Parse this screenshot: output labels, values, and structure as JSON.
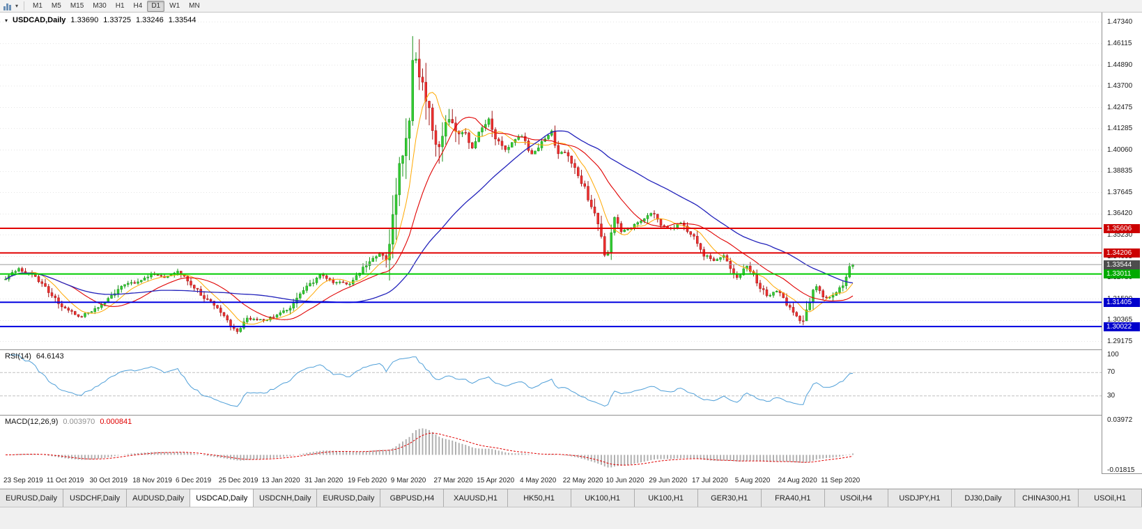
{
  "toolbar": {
    "timeframes": [
      "M1",
      "M5",
      "M15",
      "M30",
      "H1",
      "H4",
      "D1",
      "W1",
      "MN"
    ],
    "active_timeframe": "D1"
  },
  "chart": {
    "title": "USDCAD,Daily",
    "open": "1.33690",
    "high": "1.33725",
    "low": "1.33246",
    "close": "1.33544",
    "price_ticks": [
      "1.47340",
      "1.46115",
      "1.44890",
      "1.43700",
      "1.42475",
      "1.41285",
      "1.40060",
      "1.38835",
      "1.37645",
      "1.36420",
      "1.35230",
      "1.34005",
      "1.32780",
      "1.31590",
      "1.30365",
      "1.29175"
    ],
    "levels": [
      {
        "name": "resistance-upper",
        "price": 1.35606,
        "tag": "1.35606",
        "line_color": "#e00000",
        "tag_bg": "#cc0000",
        "width": 2
      },
      {
        "name": "resistance-lower",
        "price": 1.34206,
        "tag": "1.34206",
        "line_color": "#e00000",
        "tag_bg": "#cc0000",
        "width": 2
      },
      {
        "name": "bid-line",
        "price": 1.33544,
        "tag": "1.33544",
        "line_color": "#9a9a9a",
        "tag_bg": "#4d4d4d",
        "width": 1
      },
      {
        "name": "support-green",
        "price": 1.33011,
        "tag": "1.33011",
        "line_color": "#00cc00",
        "tag_bg": "#00aa00",
        "width": 2
      },
      {
        "name": "support-blue-upper",
        "price": 1.31405,
        "tag": "1.31405",
        "line_color": "#0000e0",
        "tag_bg": "#0000cc",
        "width": 2
      },
      {
        "name": "support-blue-lower",
        "price": 1.30022,
        "tag": "1.30022",
        "line_color": "#0000e0",
        "tag_bg": "#0000cc",
        "width": 2
      }
    ],
    "ma_colors": {
      "fast": "#ffa800",
      "medium": "#e00000",
      "slow": "#2222bb"
    },
    "candle_up_color": "#33cc33",
    "candle_up_wick": "#189018",
    "candle_down_color": "#ee3030",
    "candle_down_wick": "#a01616",
    "grid_color": "#e4e4e4"
  },
  "chart_data": {
    "type": "candlestick",
    "symbol": "USDCAD",
    "timeframe": "Daily",
    "y_axis": {
      "min": 1.288,
      "max": 1.478
    },
    "num_candles": 257,
    "close_waypoints": [
      [
        0,
        1.327
      ],
      [
        4,
        1.333
      ],
      [
        8,
        1.3295
      ],
      [
        13,
        1.32
      ],
      [
        17,
        1.312
      ],
      [
        22,
        1.3058
      ],
      [
        26,
        1.3085
      ],
      [
        31,
        1.316
      ],
      [
        35,
        1.323
      ],
      [
        39,
        1.3255
      ],
      [
        44,
        1.33
      ],
      [
        48,
        1.328
      ],
      [
        52,
        1.3312
      ],
      [
        56,
        1.3245
      ],
      [
        60,
        1.317
      ],
      [
        63,
        1.3125
      ],
      [
        65,
        1.3085
      ],
      [
        68,
        1.3005
      ],
      [
        70,
        1.2972
      ],
      [
        73,
        1.3048
      ],
      [
        78,
        1.304
      ],
      [
        82,
        1.3062
      ],
      [
        86,
        1.3105
      ],
      [
        91,
        1.323
      ],
      [
        95,
        1.3292
      ],
      [
        99,
        1.3255
      ],
      [
        104,
        1.3242
      ],
      [
        107,
        1.3302
      ],
      [
        110,
        1.3382
      ],
      [
        113,
        1.3422
      ],
      [
        115,
        1.3385
      ],
      [
        117,
        1.3682
      ],
      [
        119,
        1.392
      ],
      [
        121,
        1.4025
      ],
      [
        123,
        1.448
      ],
      [
        124,
        1.4505
      ],
      [
        126,
        1.4355
      ],
      [
        128,
        1.4205
      ],
      [
        130,
        1.4005
      ],
      [
        133,
        1.418
      ],
      [
        136,
        1.4132
      ],
      [
        139,
        1.4092
      ],
      [
        141,
        1.4022
      ],
      [
        143,
        1.4102
      ],
      [
        146,
        1.419
      ],
      [
        148,
        1.4082
      ],
      [
        151,
        1.4012
      ],
      [
        154,
        1.4062
      ],
      [
        156,
        1.4092
      ],
      [
        159,
        1.3982
      ],
      [
        162,
        1.4052
      ],
      [
        165,
        1.4112
      ],
      [
        167,
        1.3982
      ],
      [
        169,
        1.3992
      ],
      [
        172,
        1.3902
      ],
      [
        175,
        1.3782
      ],
      [
        177,
        1.3682
      ],
      [
        179,
        1.3572
      ],
      [
        181,
        1.3422
      ],
      [
        182,
        1.3412
      ],
      [
        184,
        1.3622
      ],
      [
        186,
        1.3542
      ],
      [
        189,
        1.3562
      ],
      [
        192,
        1.3602
      ],
      [
        195,
        1.3652
      ],
      [
        198,
        1.3582
      ],
      [
        201,
        1.3552
      ],
      [
        204,
        1.3592
      ],
      [
        208,
        1.3512
      ],
      [
        211,
        1.3412
      ],
      [
        214,
        1.3382
      ],
      [
        217,
        1.3402
      ],
      [
        221,
        1.3282
      ],
      [
        224,
        1.3352
      ],
      [
        227,
        1.3252
      ],
      [
        230,
        1.3182
      ],
      [
        234,
        1.3202
      ],
      [
        237,
        1.3102
      ],
      [
        239,
        1.3052
      ],
      [
        241,
        1.3032
      ],
      [
        243,
        1.3152
      ],
      [
        245,
        1.3232
      ],
      [
        247,
        1.3162
      ],
      [
        249,
        1.3172
      ],
      [
        251,
        1.3202
      ],
      [
        253,
        1.3242
      ],
      [
        255,
        1.333
      ],
      [
        256,
        1.33544
      ]
    ],
    "date_labels": [
      {
        "label": "23 Sep 2019",
        "i": 0
      },
      {
        "label": "11 Oct 2019",
        "i": 13
      },
      {
        "label": "30 Oct 2019",
        "i": 26
      },
      {
        "label": "18 Nov 2019",
        "i": 39
      },
      {
        "label": "6 Dec 2019",
        "i": 52
      },
      {
        "label": "25 Dec 2019",
        "i": 65
      },
      {
        "label": "13 Jan 2020",
        "i": 78
      },
      {
        "label": "31 Jan 2020",
        "i": 91
      },
      {
        "label": "19 Feb 2020",
        "i": 104
      },
      {
        "label": "9 Mar 2020",
        "i": 117
      },
      {
        "label": "27 Mar 2020",
        "i": 130
      },
      {
        "label": "15 Apr 2020",
        "i": 143
      },
      {
        "label": "4 May 2020",
        "i": 156
      },
      {
        "label": "22 May 2020",
        "i": 169
      },
      {
        "label": "10 Jun 2020",
        "i": 182
      },
      {
        "label": "29 Jun 2020",
        "i": 195
      },
      {
        "label": "17 Jul 2020",
        "i": 208
      },
      {
        "label": "5 Aug 2020",
        "i": 221
      },
      {
        "label": "24 Aug 2020",
        "i": 234
      },
      {
        "label": "11 Sep 2020",
        "i": 247
      }
    ]
  },
  "rsi": {
    "name": "RSI(14)",
    "value": "64.6143",
    "line_color": "#4f9fd8",
    "ticks": [
      {
        "label": "100",
        "v": 100
      },
      {
        "label": "70",
        "v": 70
      },
      {
        "label": "30",
        "v": 30
      }
    ],
    "levels": [
      70,
      30
    ]
  },
  "macd": {
    "name": "MACD(12,26,9)",
    "value_main": "0.003970",
    "value_signal": "0.000841",
    "hist_color": "#b0b0b0",
    "signal_color": "#e00000",
    "ticks": [
      {
        "label": "0.03972",
        "v": 0.03972
      },
      {
        "label": "-0.01815",
        "v": -0.01815
      }
    ]
  },
  "tabs": [
    "EURUSD,Daily",
    "USDCHF,Daily",
    "AUDUSD,Daily",
    "USDCAD,Daily",
    "USDCNH,Daily",
    "EURUSD,Daily",
    "GBPUSD,H4",
    "XAUUSD,H1",
    "HK50,H1",
    "UK100,H1",
    "UK100,H1",
    "GER30,H1",
    "FRA40,H1",
    "USOil,H4",
    "USDJPY,H1",
    "DJ30,Daily",
    "CHINA300,H1",
    "USOil,H1"
  ],
  "active_tab_index": 3
}
